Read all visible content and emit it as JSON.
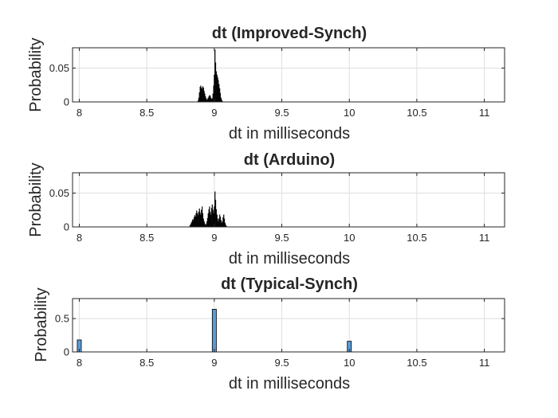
{
  "chart_data": [
    {
      "type": "bar",
      "title": "dt (Improved-Synch)",
      "xlabel": "dt in milliseconds",
      "ylabel": "Probability",
      "xlim": [
        7.95,
        11.15
      ],
      "ylim": [
        0,
        0.08
      ],
      "xticks": [
        8,
        8.5,
        9,
        9.5,
        10,
        10.5,
        11
      ],
      "xtick_labels": [
        "8",
        "8.5",
        "9",
        "9.5",
        "10",
        "10.5",
        "11"
      ],
      "yticks": [
        0,
        0.05
      ],
      "ytick_labels": [
        "0",
        "0.05"
      ],
      "grid": true,
      "bar_color": "#000000",
      "bin_width": 0.005,
      "x": [
        8.88,
        8.885,
        8.89,
        8.895,
        8.9,
        8.905,
        8.91,
        8.915,
        8.92,
        8.925,
        8.93,
        8.935,
        8.94,
        8.945,
        8.95,
        8.955,
        8.96,
        8.965,
        8.97,
        8.975,
        8.98,
        8.985,
        8.99,
        8.995,
        9.0,
        9.005,
        9.01,
        9.015,
        9.02,
        9.025,
        9.03,
        9.035,
        9.04,
        9.045,
        9.05,
        9.055,
        9.06
      ],
      "values": [
        0.002,
        0.006,
        0.014,
        0.022,
        0.024,
        0.021,
        0.019,
        0.023,
        0.021,
        0.016,
        0.012,
        0.008,
        0.005,
        0.003,
        0.004,
        0.006,
        0.008,
        0.01,
        0.009,
        0.006,
        0.004,
        0.005,
        0.012,
        0.024,
        0.04,
        0.077,
        0.058,
        0.045,
        0.04,
        0.036,
        0.032,
        0.026,
        0.02,
        0.013,
        0.006,
        0.003,
        0.001
      ]
    },
    {
      "type": "bar",
      "title": "dt (Arduino)",
      "xlabel": "dt in milliseconds",
      "ylabel": "Probability",
      "xlim": [
        7.95,
        11.15
      ],
      "ylim": [
        0,
        0.08
      ],
      "xticks": [
        8,
        8.5,
        9,
        9.5,
        10,
        10.5,
        11
      ],
      "xtick_labels": [
        "8",
        "8.5",
        "9",
        "9.5",
        "10",
        "10.5",
        "11"
      ],
      "yticks": [
        0,
        0.05
      ],
      "ytick_labels": [
        "0",
        "0.05"
      ],
      "grid": true,
      "bar_color": "#000000",
      "bin_width": 0.005,
      "x": [
        8.82,
        8.825,
        8.83,
        8.835,
        8.84,
        8.845,
        8.85,
        8.855,
        8.86,
        8.865,
        8.87,
        8.875,
        8.88,
        8.885,
        8.89,
        8.895,
        8.9,
        8.905,
        8.91,
        8.915,
        8.92,
        8.925,
        8.93,
        8.935,
        8.94,
        8.945,
        8.95,
        8.955,
        8.96,
        8.965,
        8.97,
        8.975,
        8.98,
        8.985,
        8.99,
        8.995,
        9.0,
        9.005,
        9.01,
        9.015,
        9.02,
        9.025,
        9.03,
        9.035,
        9.04,
        9.045,
        9.05,
        9.055,
        9.06,
        9.065,
        9.07,
        9.075,
        9.08,
        9.085,
        9.09
      ],
      "values": [
        0.002,
        0.004,
        0.006,
        0.008,
        0.011,
        0.01,
        0.014,
        0.017,
        0.015,
        0.02,
        0.024,
        0.02,
        0.017,
        0.022,
        0.027,
        0.021,
        0.018,
        0.025,
        0.03,
        0.02,
        0.012,
        0.008,
        0.005,
        0.003,
        0.004,
        0.008,
        0.013,
        0.02,
        0.026,
        0.03,
        0.022,
        0.018,
        0.028,
        0.033,
        0.025,
        0.02,
        0.03,
        0.052,
        0.04,
        0.026,
        0.018,
        0.012,
        0.008,
        0.012,
        0.018,
        0.015,
        0.01,
        0.006,
        0.008,
        0.014,
        0.018,
        0.012,
        0.006,
        0.003,
        0.001
      ]
    },
    {
      "type": "bar",
      "title": "dt (Typical-Synch)",
      "xlabel": "dt in milliseconds",
      "ylabel": "Probability",
      "xlim": [
        7.95,
        11.15
      ],
      "ylim": [
        0,
        0.8
      ],
      "xticks": [
        8,
        8.5,
        9,
        9.5,
        10,
        10.5,
        11
      ],
      "xtick_labels": [
        "8",
        "8.5",
        "9",
        "9.5",
        "10",
        "10.5",
        "11"
      ],
      "yticks": [
        0,
        0.5
      ],
      "ytick_labels": [
        "0",
        "0.5"
      ],
      "grid": true,
      "bar_color": "#5b9bd5",
      "bin_width": 0.03,
      "x": [
        8.0,
        9.0,
        10.0
      ],
      "values": [
        0.18,
        0.64,
        0.16
      ]
    }
  ]
}
